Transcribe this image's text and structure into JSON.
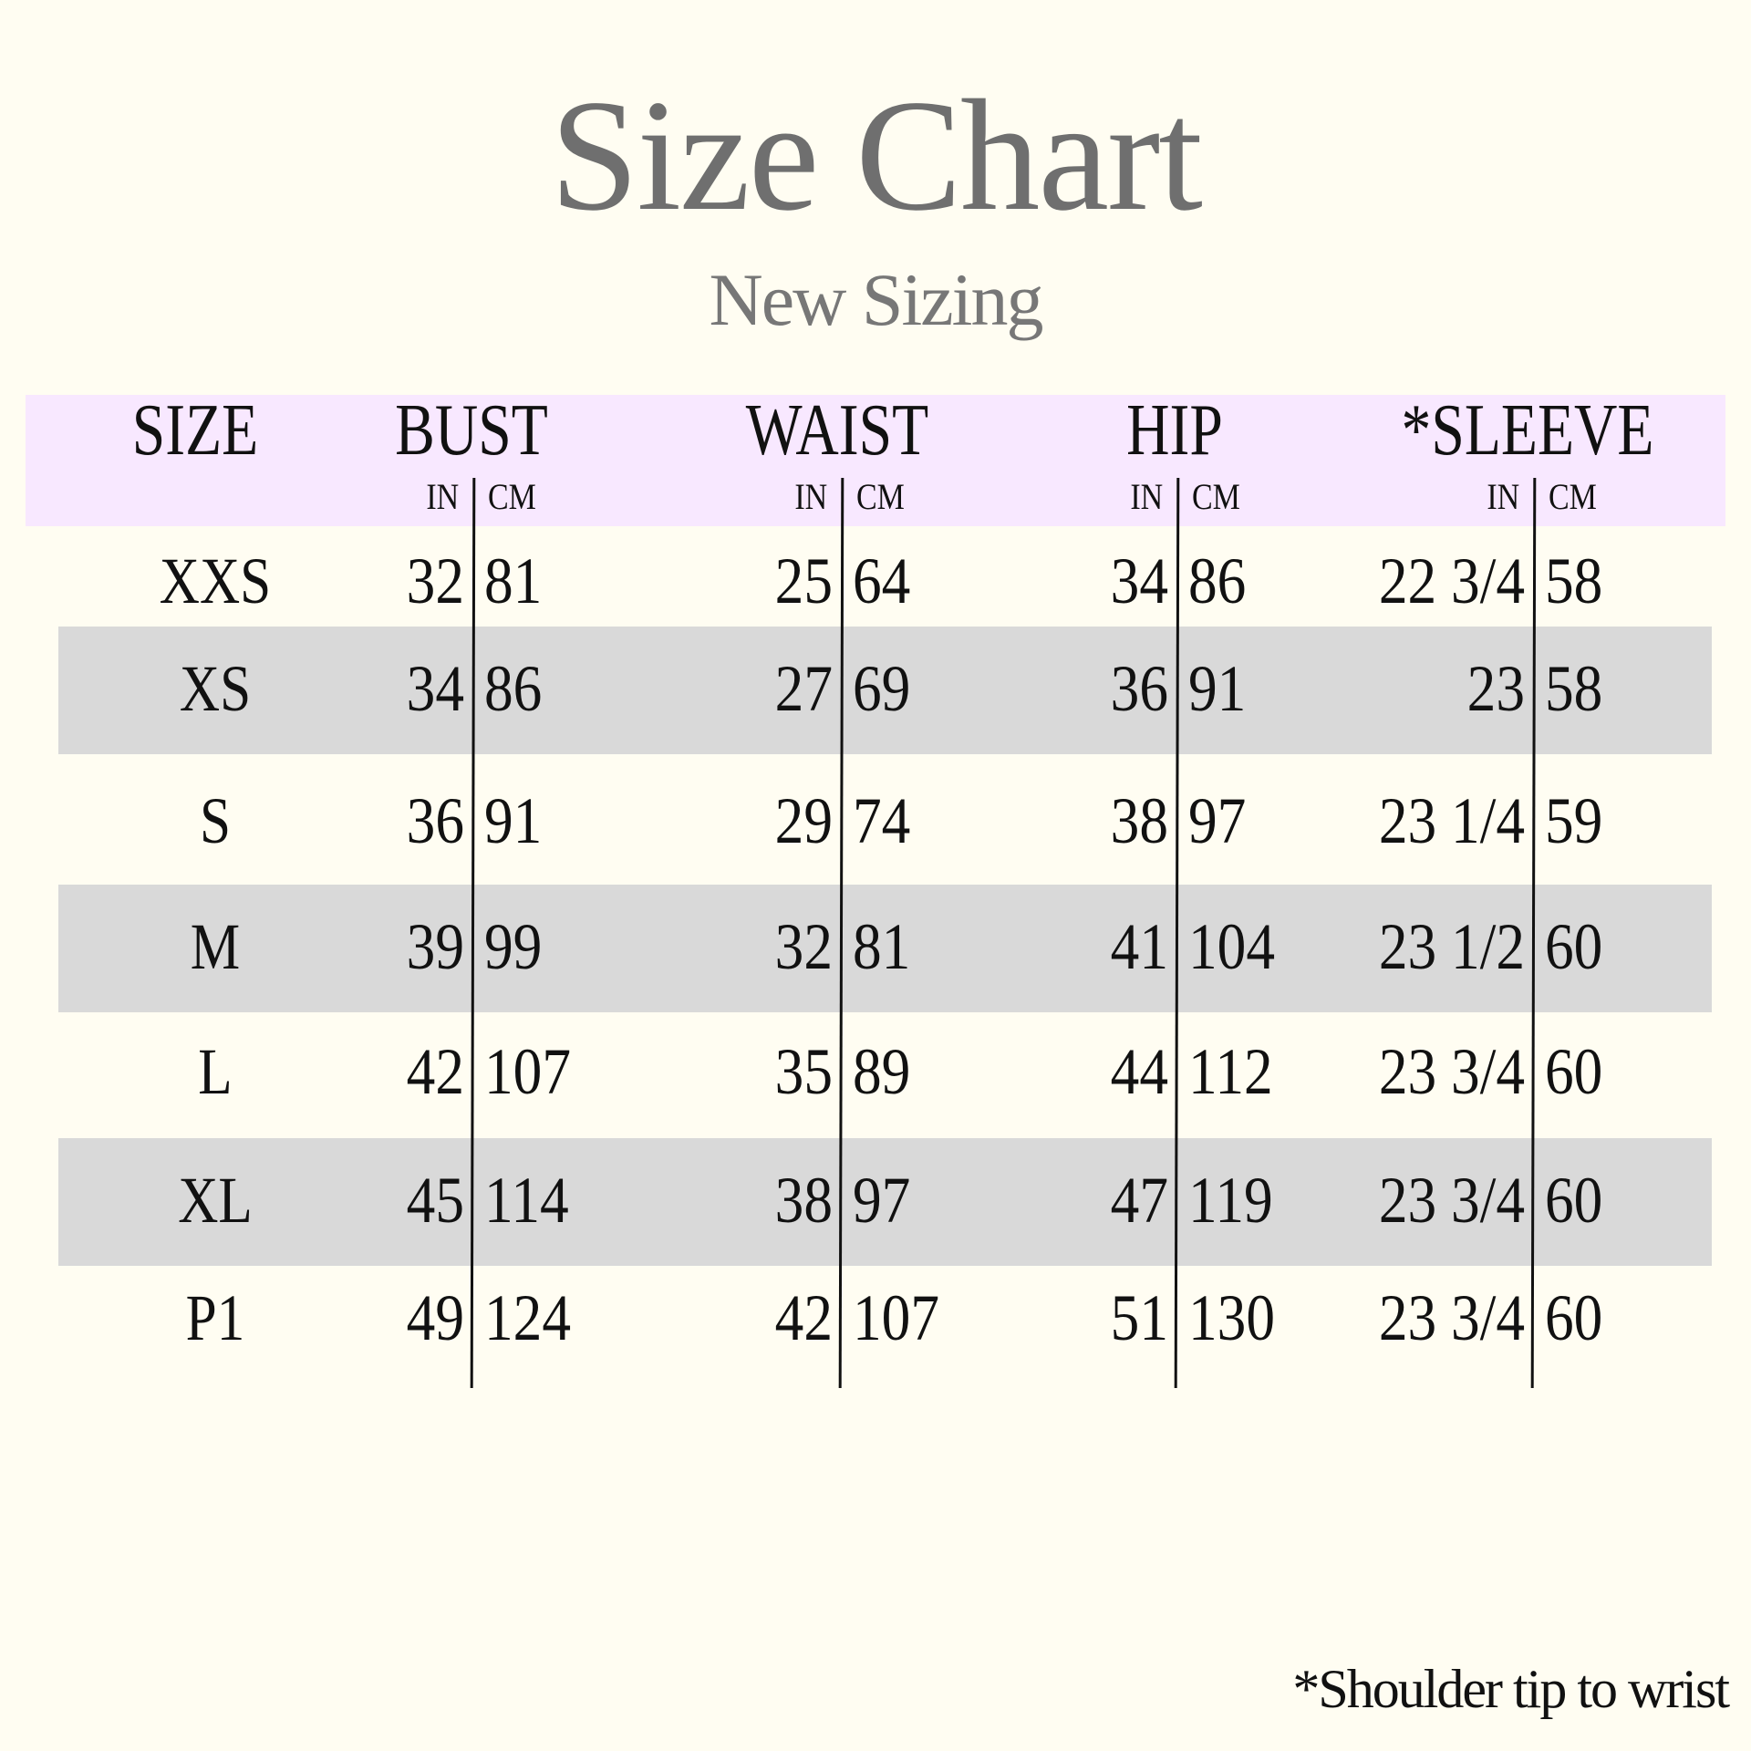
{
  "title": "Size Chart",
  "subtitle": "New Sizing",
  "colors": {
    "header_band": "#f8e8ff",
    "stripe": "#d9d9d9",
    "background": "#fffdf2",
    "title": "#6f6f6f"
  },
  "headers": {
    "size": "SIZE",
    "columns": [
      {
        "label": "BUST",
        "in": "IN",
        "cm": "CM"
      },
      {
        "label": "WAIST",
        "in": "IN",
        "cm": "CM"
      },
      {
        "label": "HIP",
        "in": "IN",
        "cm": "CM"
      },
      {
        "label": "*SLEEVE",
        "in": "IN",
        "cm": "CM"
      }
    ]
  },
  "rows": [
    {
      "size": "XXS",
      "values": [
        [
          "32",
          "81"
        ],
        [
          "25",
          "64"
        ],
        [
          "34",
          "86"
        ],
        [
          "22 3/4",
          "58"
        ]
      ]
    },
    {
      "size": "XS",
      "values": [
        [
          "34",
          "86"
        ],
        [
          "27",
          "69"
        ],
        [
          "36",
          "91"
        ],
        [
          "23",
          "58"
        ]
      ]
    },
    {
      "size": "S",
      "values": [
        [
          "36",
          "91"
        ],
        [
          "29",
          "74"
        ],
        [
          "38",
          "97"
        ],
        [
          "23 1/4",
          "59"
        ]
      ]
    },
    {
      "size": "M",
      "values": [
        [
          "39",
          "99"
        ],
        [
          "32",
          "81"
        ],
        [
          "41",
          "104"
        ],
        [
          "23 1/2",
          "60"
        ]
      ]
    },
    {
      "size": "L",
      "values": [
        [
          "42",
          "107"
        ],
        [
          "35",
          "89"
        ],
        [
          "44",
          "112"
        ],
        [
          "23 3/4",
          "60"
        ]
      ]
    },
    {
      "size": "XL",
      "values": [
        [
          "45",
          "114"
        ],
        [
          "38",
          "97"
        ],
        [
          "47",
          "119"
        ],
        [
          "23 3/4",
          "60"
        ]
      ]
    },
    {
      "size": "P1",
      "values": [
        [
          "49",
          "124"
        ],
        [
          "42",
          "107"
        ],
        [
          "51",
          "130"
        ],
        [
          "23 3/4",
          "60"
        ]
      ]
    }
  ],
  "footnote": "*Shoulder tip to wrist"
}
